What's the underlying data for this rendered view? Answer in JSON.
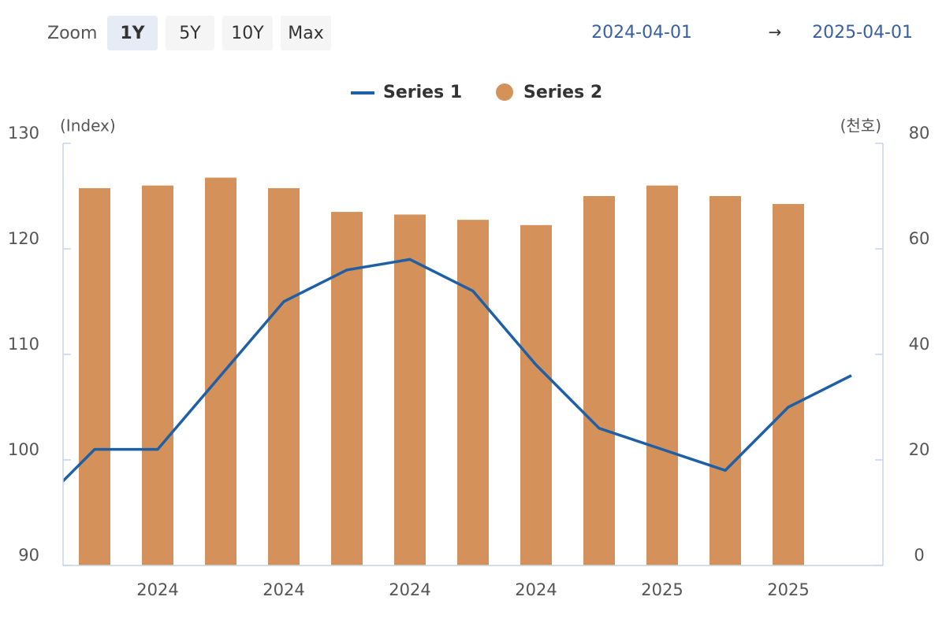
{
  "ui": {
    "zoom": {
      "label": "Zoom",
      "buttons": [
        "1Y",
        "5Y",
        "10Y",
        "Max"
      ],
      "active": "1Y"
    },
    "range": {
      "from": "2024-04-01",
      "arrow": "→",
      "to": "2025-04-01"
    }
  },
  "chart_data": {
    "type": "bar-line",
    "y_label": "(Index)",
    "y2_label": "(천호)",
    "categories": [
      null,
      null,
      "2024",
      null,
      "2024",
      null,
      "2024",
      null,
      "2024",
      null,
      "2025",
      null,
      "2025",
      null
    ],
    "series": [
      {
        "name": "Series 1",
        "type": "line",
        "color": "#1f5fa6",
        "values": [
          95,
          101,
          101,
          108,
          115,
          118,
          119,
          116,
          109,
          103,
          101,
          99,
          105,
          108
        ]
      },
      {
        "name": "Series 2",
        "type": "bar",
        "axis": "y2",
        "color": "#d4915a",
        "values": [
          null,
          71.5,
          72,
          73.5,
          71.5,
          67,
          66.5,
          65.5,
          64.5,
          70,
          72,
          70,
          68.5,
          null
        ]
      }
    ],
    "ylim": [
      90,
      130
    ],
    "yticks": [
      90,
      100,
      110,
      120,
      130
    ],
    "y2lim": [
      0,
      80
    ],
    "y2ticks": [
      0,
      20,
      40,
      60,
      80
    ],
    "grid": false,
    "legend": "top"
  }
}
